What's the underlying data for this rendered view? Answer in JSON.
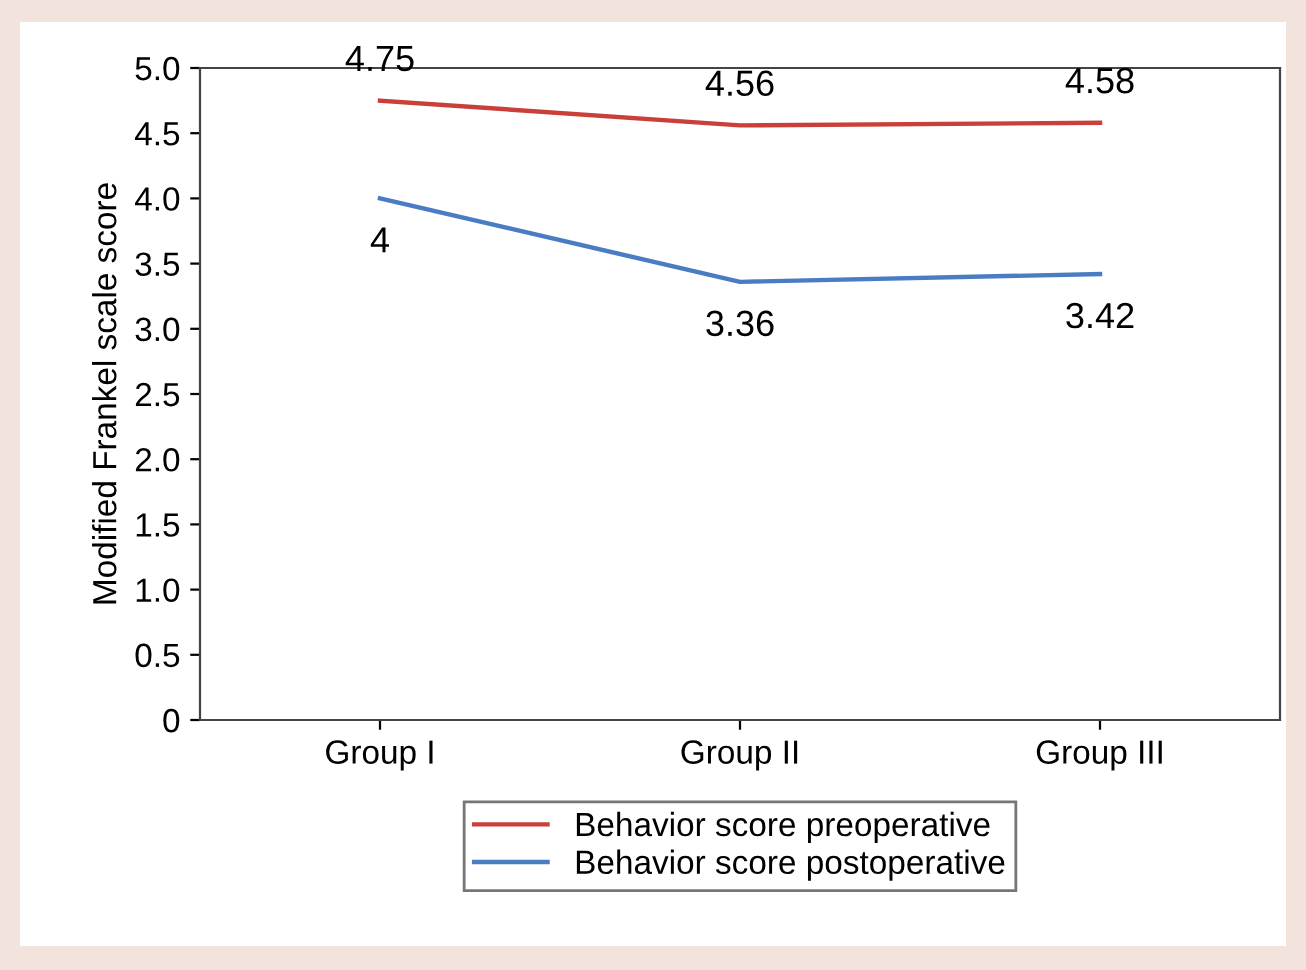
{
  "chart_data": {
    "type": "line",
    "ylabel": "Modified Frankel scale score",
    "categories": [
      "Group I",
      "Group II",
      "Group III"
    ],
    "series": [
      {
        "name": "Behavior score preoperative",
        "color": "#c9403a",
        "values": [
          4.75,
          4.56,
          4.58
        ]
      },
      {
        "name": "Behavior score postoperative",
        "color": "#4a7cc4",
        "values": [
          4,
          3.36,
          3.42
        ]
      }
    ],
    "ylim": [
      0,
      5
    ],
    "yticks": [
      0,
      {
        "value": 0.5,
        "label": "0.5"
      },
      {
        "value": 1,
        "label": "1.0"
      },
      {
        "value": 1.5,
        "label": "1.5"
      },
      {
        "value": 2,
        "label": "2.0"
      },
      {
        "value": 2.5,
        "label": "2.5"
      },
      {
        "value": 3,
        "label": "3.0"
      },
      {
        "value": 3.5,
        "label": "3.5"
      },
      {
        "value": 4,
        "label": "4.0"
      },
      {
        "value": 4.5,
        "label": "4.5"
      },
      {
        "value": 5,
        "label": "5.0"
      }
    ],
    "data_labels": true,
    "grid": false,
    "legend": "bottom",
    "marker": "none",
    "line_style": "solid"
  }
}
